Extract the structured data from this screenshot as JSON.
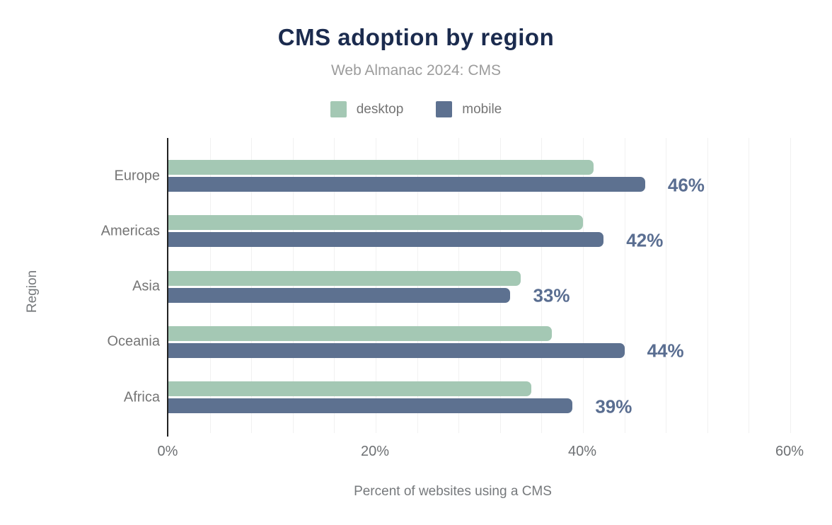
{
  "chart_data": {
    "type": "bar",
    "orientation": "horizontal",
    "title": "CMS adoption by region",
    "subtitle": "Web Almanac 2024: CMS",
    "categories": [
      "Europe",
      "Americas",
      "Asia",
      "Oceania",
      "Africa"
    ],
    "series": [
      {
        "name": "desktop",
        "color": "#a4c8b4",
        "values": [
          41,
          40,
          34,
          37,
          35
        ]
      },
      {
        "name": "mobile",
        "color": "#5d7190",
        "values": [
          46,
          42,
          33,
          44,
          39
        ]
      }
    ],
    "data_labels": [
      "46%",
      "42%",
      "33%",
      "44%",
      "39%"
    ],
    "xlabel": "Percent of websites using a CMS",
    "ylabel": "Region",
    "x_ticks": [
      {
        "label": "0%",
        "value": 0
      },
      {
        "label": "20%",
        "value": 20
      },
      {
        "label": "40%",
        "value": 40
      },
      {
        "label": "60%",
        "value": 60
      }
    ],
    "xlim": [
      0,
      60
    ],
    "grid": "vertical, minor gridlines every 4%, light gray",
    "legend_position": "top-center",
    "data_label_color": "#5a6e91",
    "title_color": "#1b2b4e",
    "subtitle_color": "#9c9c9c"
  }
}
